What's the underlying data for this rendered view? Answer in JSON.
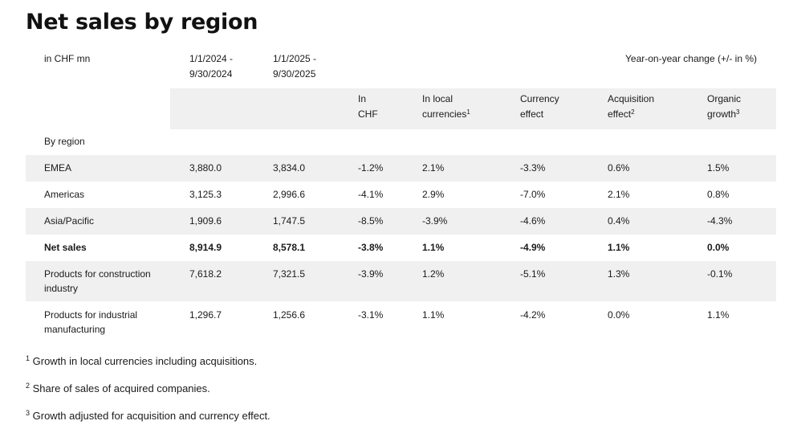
{
  "title": "Net sales by region",
  "header": {
    "unit": "in CHF mn",
    "period1_line1": "1/1/2024 -",
    "period1_line2": "9/30/2024",
    "period2_line1": "1/1/2025 -",
    "period2_line2": "9/30/2025",
    "yoy_label": "Year-on-year change (+/- in %)",
    "col_chf_line1": "In",
    "col_chf_line2": "CHF",
    "col_local_line1": "In local",
    "col_local_line2": "currencies",
    "col_local_sup": "1",
    "col_currency_line1": "Currency",
    "col_currency_line2": "effect",
    "col_acq_line1": "Acquisition",
    "col_acq_line2": "effect",
    "col_acq_sup": "2",
    "col_org_line1": "Organic",
    "col_org_line2": "growth",
    "col_org_sup": "3"
  },
  "section_label": "By region",
  "rows": [
    {
      "label": "EMEA",
      "label2": "",
      "v2024": "3,880.0",
      "v2025": "3,834.0",
      "chf": "-1.2%",
      "local": "2.1%",
      "currency": "-3.3%",
      "acq": "0.6%",
      "organic": "1.5%"
    },
    {
      "label": "Americas",
      "label2": "",
      "v2024": "3,125.3",
      "v2025": "2,996.6",
      "chf": "-4.1%",
      "local": "2.9%",
      "currency": "-7.0%",
      "acq": "2.1%",
      "organic": "0.8%"
    },
    {
      "label": "Asia/Pacific",
      "label2": "",
      "v2024": "1,909.6",
      "v2025": "1,747.5",
      "chf": "-8.5%",
      "local": "-3.9%",
      "currency": "-4.6%",
      "acq": "0.4%",
      "organic": "-4.3%"
    },
    {
      "label": "Net sales",
      "label2": "",
      "v2024": "8,914.9",
      "v2025": "8,578.1",
      "chf": "-3.8%",
      "local": "1.1%",
      "currency": "-4.9%",
      "acq": "1.1%",
      "organic": "0.0%"
    },
    {
      "label": "Products for construction",
      "label2": "industry",
      "v2024": "7,618.2",
      "v2025": "7,321.5",
      "chf": "-3.9%",
      "local": "1.2%",
      "currency": "-5.1%",
      "acq": "1.3%",
      "organic": "-0.1%"
    },
    {
      "label": "Products for industrial",
      "label2": "manufacturing",
      "v2024": "1,296.7",
      "v2025": "1,256.6",
      "chf": "-3.1%",
      "local": "1.1%",
      "currency": "-4.2%",
      "acq": "0.0%",
      "organic": "1.1%"
    }
  ],
  "footnotes": [
    {
      "num": "1",
      "text": "Growth in local currencies including acquisitions."
    },
    {
      "num": "2",
      "text": "Share of sales of acquired companies."
    },
    {
      "num": "3",
      "text": "Growth adjusted for acquisition and currency effect."
    }
  ]
}
